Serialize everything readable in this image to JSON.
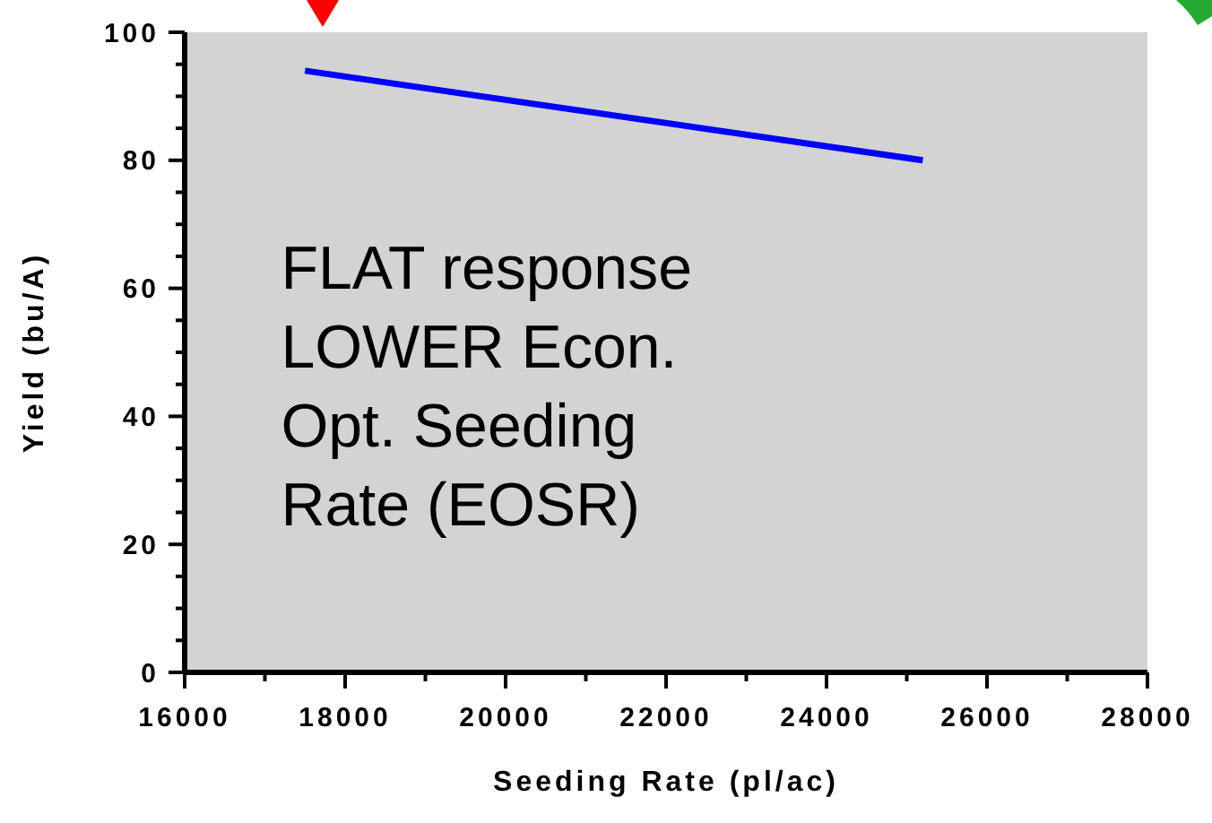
{
  "chart_data": {
    "type": "line",
    "xlabel": "Seeding Rate (pl/ac)",
    "ylabel": "Yield (bu/A)",
    "annotations": [
      "FLAT response\nLOWER Econ.\nOpt. Seeding\nRate (EOSR)"
    ],
    "x": [
      17500,
      25200
    ],
    "series": [
      {
        "color": "#0000ff",
        "values": [
          94,
          80
        ]
      }
    ],
    "xlim": [
      16000,
      28000
    ],
    "ylim": [
      0,
      100
    ],
    "xticks": [
      16000,
      {
        "value": 17000,
        "label": null
      },
      18000,
      {
        "value": 19000,
        "label": null
      },
      20000,
      {
        "value": 21000,
        "label": null
      },
      22000,
      {
        "value": 23000,
        "label": null
      },
      24000,
      {
        "value": 25000,
        "label": null
      },
      26000,
      {
        "value": 27000,
        "label": null
      },
      28000
    ],
    "yticks": [
      0,
      {
        "value": 5,
        "label": null
      },
      {
        "value": 10,
        "label": null
      },
      {
        "value": 15,
        "label": null
      },
      20,
      {
        "value": 25,
        "label": null
      },
      {
        "value": 30,
        "label": null
      },
      {
        "value": 35,
        "label": null
      },
      40,
      {
        "value": 45,
        "label": null
      },
      {
        "value": 50,
        "label": null
      },
      {
        "value": 55,
        "label": null
      },
      60,
      {
        "value": 65,
        "label": null
      },
      {
        "value": 70,
        "label": null
      },
      {
        "value": 75,
        "label": null
      },
      80,
      {
        "value": 85,
        "label": null
      },
      {
        "value": 90,
        "label": null
      },
      {
        "value": 95,
        "label": null
      },
      100
    ],
    "grid": false,
    "marker": "none",
    "line_style": "solid"
  }
}
